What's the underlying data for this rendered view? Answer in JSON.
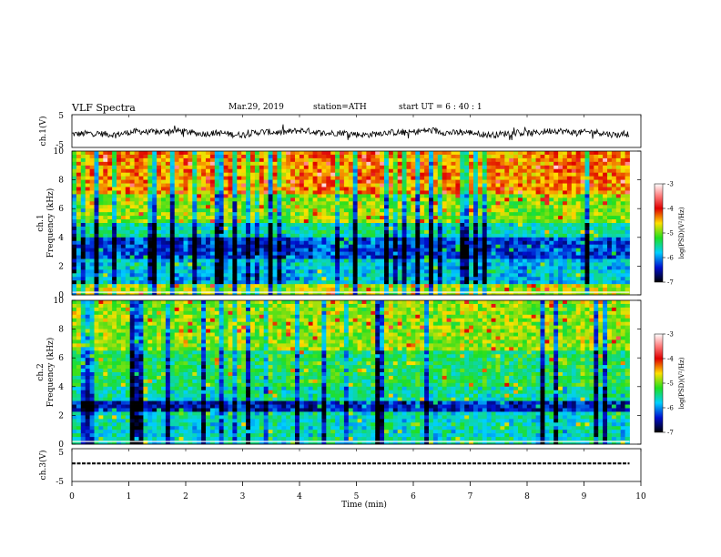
{
  "header": {
    "title": "VLF  Spectra",
    "date": "Mar.29, 2019",
    "station": "station=ATH",
    "start": "start  UT  =   6  : 40 : 1"
  },
  "chart_data": {
    "type": "heatmap",
    "xlabel": "Time  (min)",
    "xlim": [
      0,
      10
    ],
    "xticks": [
      "0",
      "1",
      "2",
      "3",
      "4",
      "5",
      "6",
      "7",
      "8",
      "9",
      "10"
    ],
    "data_end_min": 9.8,
    "panels": [
      {
        "kind": "waveform",
        "ylabel": "ch.1(V)",
        "ylim": [
          -5,
          5
        ],
        "yticks": [
          "5",
          "-5"
        ],
        "mean_level_v": -0.5,
        "color": "#000000"
      },
      {
        "kind": "spectrogram",
        "ylabel1": "ch.1",
        "ylabel2": "Frequency  (kHz)",
        "ylim_khz": [
          0,
          10
        ],
        "yticks": [
          "0",
          "2",
          "4",
          "6",
          "8",
          "10"
        ],
        "colorbar": {
          "label": "log(PSD)(V²/Hz)",
          "range": [
            -7,
            -3
          ],
          "ticks": [
            "-3",
            "-4",
            "-5",
            "-6",
            "-7"
          ]
        }
      },
      {
        "kind": "spectrogram",
        "ylabel1": "ch.2",
        "ylabel2": "Frequency  (kHz)",
        "ylim_khz": [
          0,
          10
        ],
        "yticks": [
          "0",
          "2",
          "4",
          "6",
          "8",
          "10"
        ],
        "colorbar": {
          "label": "log(PSD)(V²/Hz)",
          "range": [
            -7,
            -3
          ],
          "ticks": [
            "-3",
            "-4",
            "-5",
            "-6",
            "-7"
          ]
        }
      },
      {
        "kind": "waveform",
        "ylabel": "ch.3(V)",
        "ylim": [
          -5,
          5
        ],
        "yticks": [
          "5",
          "-5"
        ],
        "mean_level_v": 0.5,
        "color": "#000000"
      }
    ]
  }
}
